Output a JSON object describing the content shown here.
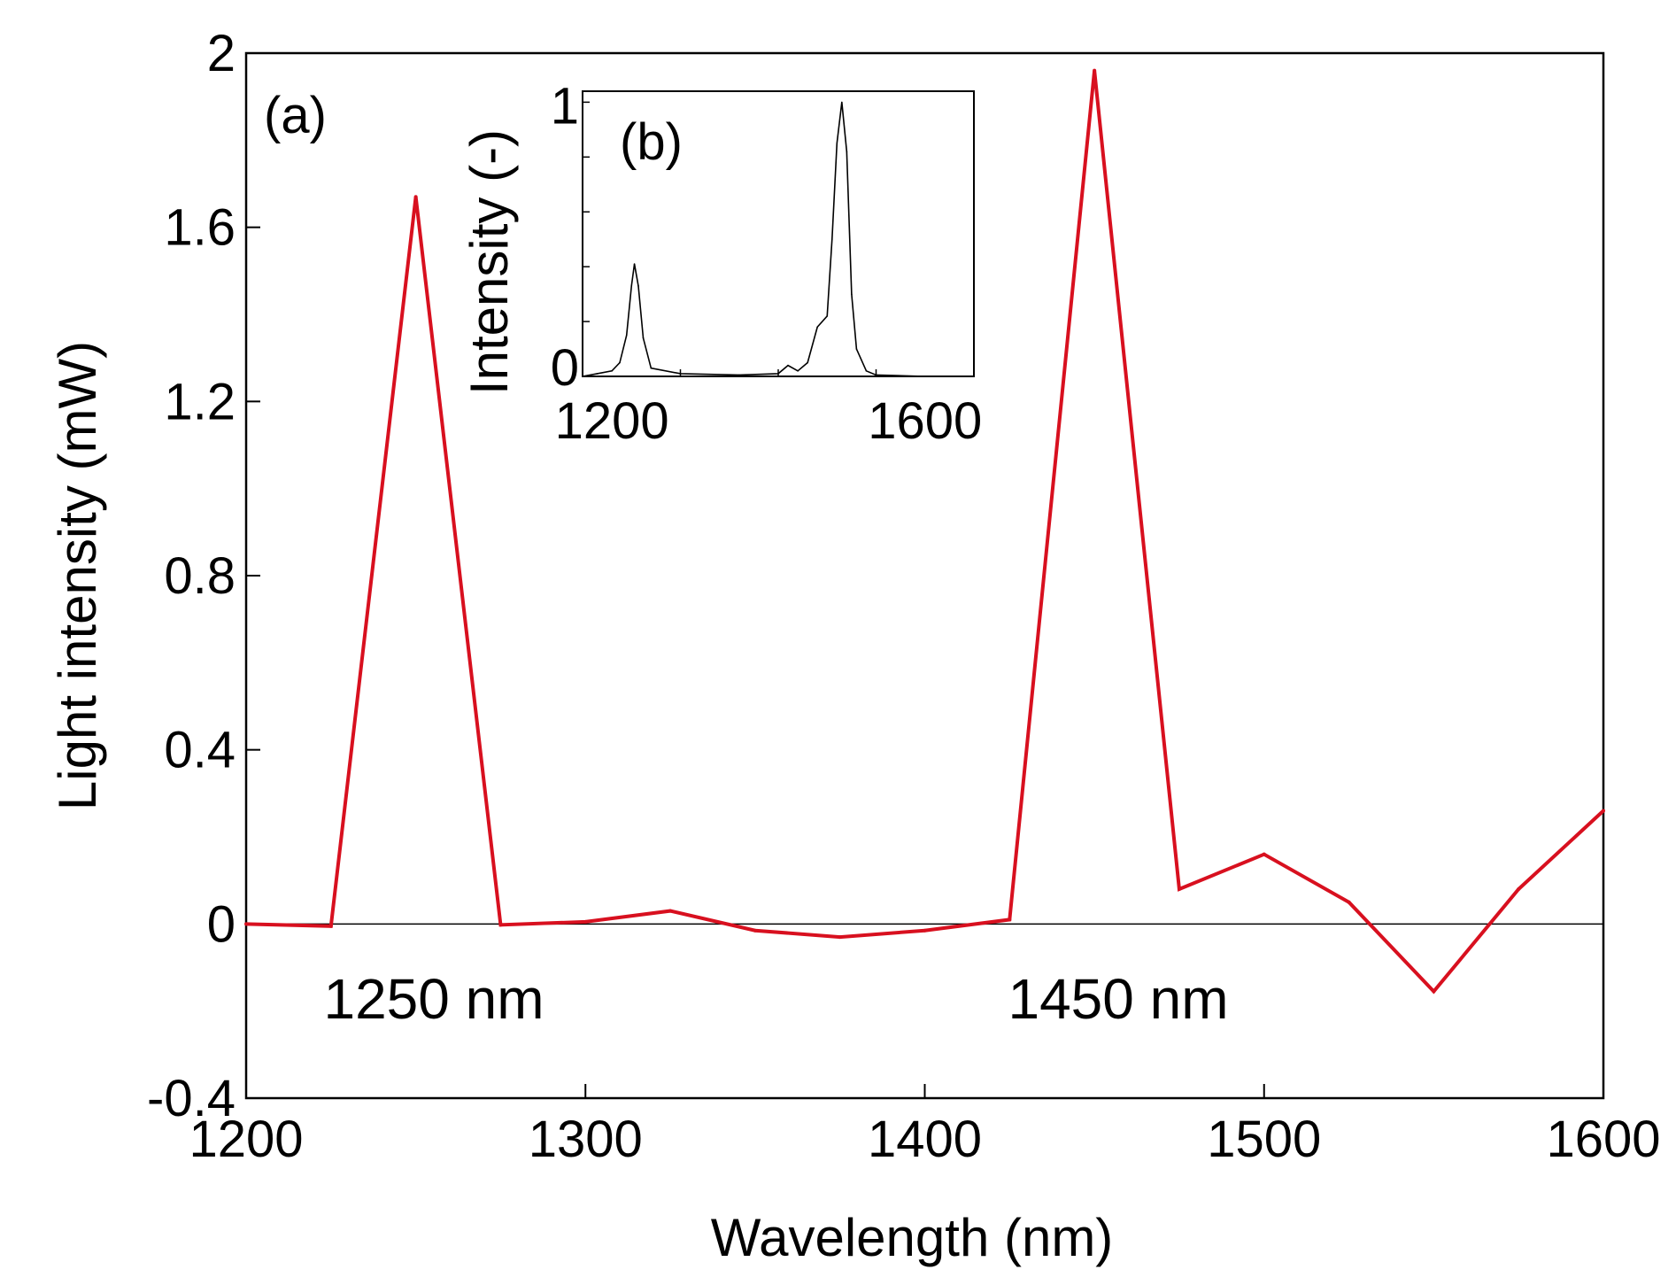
{
  "chart_data": [
    {
      "panel": "(a)",
      "type": "line",
      "xlabel": "Wavelength (nm)",
      "ylabel": "Light intensity (mW)",
      "xlim": [
        1200,
        1600
      ],
      "ylim": [
        -0.4,
        2
      ],
      "xticks": [
        1200,
        1300,
        1400,
        1500,
        1600
      ],
      "xtick_labels": [
        "1200",
        "1300",
        "1400",
        "1500",
        "1600"
      ],
      "yticks": [
        -0.4,
        0,
        0.4,
        0.8,
        1.2,
        1.6,
        2
      ],
      "ytick_labels": [
        "-0.4",
        "0",
        "0.4",
        "0.8",
        "1.2",
        "1.6",
        "2"
      ],
      "zero_line": true,
      "series": [
        {
          "name": "Light intensity",
          "color": "#d8101f",
          "x": [
            1200,
            1225,
            1250,
            1275,
            1300,
            1325,
            1350,
            1375,
            1400,
            1425,
            1450,
            1475,
            1500,
            1525,
            1550,
            1575,
            1600
          ],
          "y": [
            0,
            -0.005,
            1.67,
            -0.002,
            0.005,
            0.03,
            -0.015,
            -0.03,
            -0.015,
            0.01,
            1.96,
            0.08,
            0.16,
            0.05,
            -0.155,
            0.08,
            0.26
          ]
        }
      ],
      "annotations": [
        {
          "text": "1250 nm",
          "x": 1254,
          "y": -0.175
        },
        {
          "text": "1450 nm",
          "x": 1454,
          "y": -0.175
        }
      ]
    },
    {
      "panel": "(b)",
      "type": "line",
      "ylabel": "Intensity (-)",
      "xlim": [
        1200,
        1600
      ],
      "ylim": [
        0,
        1.04
      ],
      "xtick_labels_shown": [
        "1200",
        "1600"
      ],
      "xtick_values_shown": [
        1230,
        1550
      ],
      "yticks": [
        0,
        1
      ],
      "ytick_labels": [
        "0",
        "1"
      ],
      "series": [
        {
          "name": "Intensity",
          "color": "#000000",
          "x": [
            1200,
            1215,
            1230,
            1238,
            1245,
            1250,
            1253,
            1257,
            1262,
            1270,
            1300,
            1360,
            1400,
            1410,
            1420,
            1430,
            1440,
            1450,
            1455,
            1460,
            1465,
            1470,
            1475,
            1480,
            1490,
            1500,
            1550,
            1600
          ],
          "y": [
            0,
            0.01,
            0.02,
            0.05,
            0.15,
            0.33,
            0.41,
            0.33,
            0.14,
            0.03,
            0.01,
            0.005,
            0.01,
            0.04,
            0.02,
            0.05,
            0.18,
            0.22,
            0.5,
            0.85,
            1.0,
            0.82,
            0.3,
            0.1,
            0.02,
            0.005,
            0,
            0
          ]
        }
      ]
    }
  ]
}
